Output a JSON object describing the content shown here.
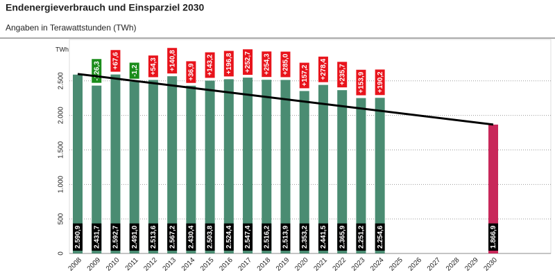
{
  "chart_data": {
    "type": "bar",
    "title": "Endenergieverbrauch und Einsparziel 2030",
    "subtitle": "Angaben in Terawattstunden (TWh)",
    "y_unit": "TWh",
    "categories": [
      "2008",
      "2009",
      "2010",
      "2011",
      "2012",
      "2013",
      "2014",
      "2015",
      "2016",
      "2017",
      "2018",
      "2019",
      "2020",
      "2021",
      "2022",
      "2023",
      "2024",
      "2025",
      "2026",
      "2027",
      "2028",
      "2029",
      "2030"
    ],
    "values": [
      2590.9,
      2431.7,
      2592.7,
      2491.0,
      2513.6,
      2567.2,
      2430.4,
      2503.8,
      2524.4,
      2547.4,
      2516.2,
      2513.9,
      2353.2,
      2441.5,
      2365.9,
      2251.2,
      2254.6,
      null,
      null,
      null,
      null,
      null,
      1866.9
    ],
    "value_labels": [
      "2.590,9",
      "2.431,7",
      "2.592,7",
      "2.491,0",
      "2.513,6",
      "2.567,2",
      "2.430,4",
      "2.503,8",
      "2.524,4",
      "2.547,4",
      "2.516,2",
      "2.513,9",
      "2.353,2",
      "2.441,5",
      "2.365,9",
      "2.251,2",
      "2.254,6",
      null,
      null,
      null,
      null,
      null,
      "1.866,9"
    ],
    "colors": [
      "#4a8c72",
      "#4a8c72",
      "#4a8c72",
      "#4a8c72",
      "#4a8c72",
      "#4a8c72",
      "#4a8c72",
      "#4a8c72",
      "#4a8c72",
      "#4a8c72",
      "#4a8c72",
      "#4a8c72",
      "#4a8c72",
      "#4a8c72",
      "#4a8c72",
      "#4a8c72",
      "#4a8c72",
      null,
      null,
      null,
      null,
      null,
      "#c8285a"
    ],
    "deltas": [
      null,
      -126.3,
      67.6,
      -1.2,
      54.3,
      140.8,
      36.9,
      143.2,
      196.8,
      252.7,
      254.3,
      285.0,
      157.2,
      278.4,
      235.7,
      153.9,
      190.2,
      null,
      null,
      null,
      null,
      null,
      null
    ],
    "delta_labels": [
      null,
      "-126,3",
      "+67,6",
      "-1,2",
      "+54,3",
      "+140,8",
      "+36,9",
      "+143,2",
      "+196,8",
      "+252,7",
      "+254,3",
      "+285,0",
      "+157,2",
      "+278,4",
      "+235,7",
      "+153,9",
      "+190,2",
      null,
      null,
      null,
      null,
      null,
      null
    ],
    "delta_colors": {
      "positive": "#e8141c",
      "negative": "#1a8c1a"
    },
    "trend": {
      "x": [
        "2008",
        "2030"
      ],
      "values": [
        2600,
        1866.9
      ],
      "color": "#000000"
    },
    "ylim": [
      0,
      3100
    ],
    "yticks": [
      0,
      500,
      {
        "value": 1000,
        "label": "1.000"
      },
      {
        "value": 1500,
        "label": "1.500"
      },
      {
        "value": 2000,
        "label": "2.000"
      },
      {
        "value": 2500,
        "label": "2.500"
      }
    ],
    "grid": true
  }
}
